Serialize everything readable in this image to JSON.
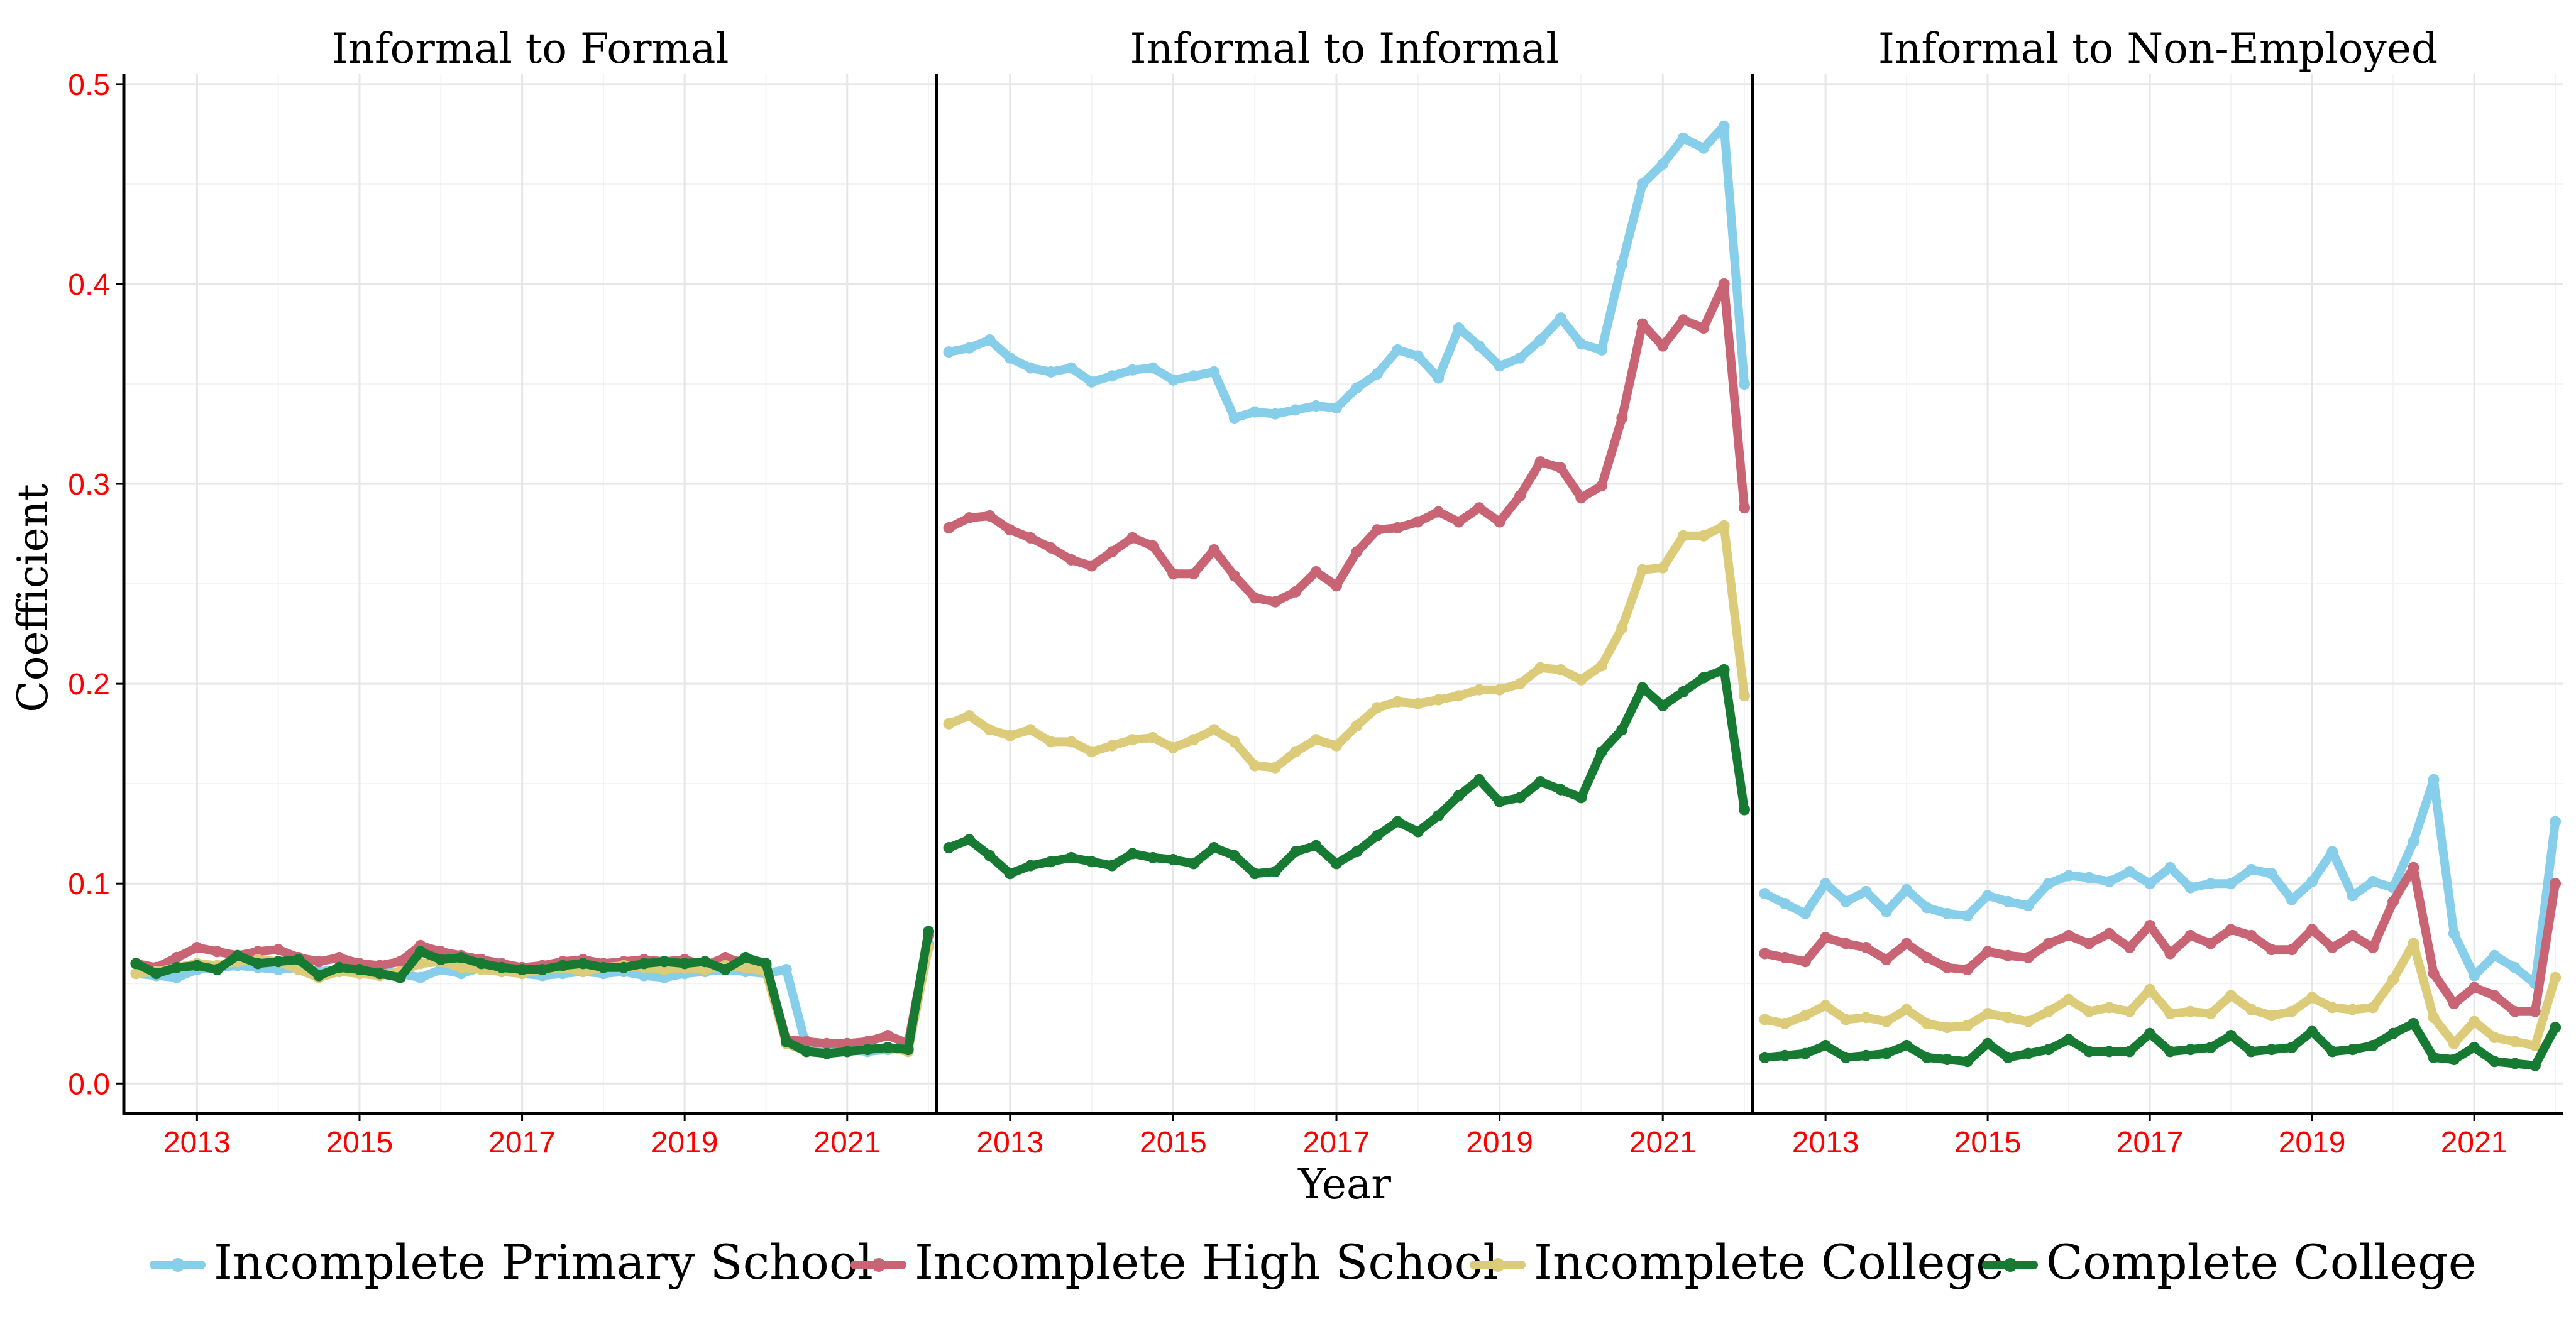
{
  "chart_data": {
    "type": "line",
    "xlabel": "Year",
    "ylabel": "Coefficient",
    "x_tick_labels": [
      "2013",
      "2015",
      "2017",
      "2019",
      "2021"
    ],
    "y_tick_labels": [
      "0.0",
      "0.1",
      "0.2",
      "0.3",
      "0.4",
      "0.5"
    ],
    "xlim": [
      2012.1,
      2022.1
    ],
    "ylim": [
      -0.015,
      0.505
    ],
    "tick_label_color": "#ff0000",
    "grid": true,
    "legend_position": "bottom",
    "series_styles": [
      {
        "name": "Incomplete Primary School",
        "color": "#87ceeb"
      },
      {
        "name": "Incomplete High School",
        "color": "#c86473"
      },
      {
        "name": "Incomplete College",
        "color": "#dccb78"
      },
      {
        "name": "Complete College",
        "color": "#167a32"
      }
    ],
    "x": [
      2012.25,
      2012.5,
      2012.75,
      2013.0,
      2013.25,
      2013.5,
      2013.75,
      2014.0,
      2014.25,
      2014.5,
      2014.75,
      2015.0,
      2015.25,
      2015.5,
      2015.75,
      2016.0,
      2016.25,
      2016.5,
      2016.75,
      2017.0,
      2017.25,
      2017.5,
      2017.75,
      2018.0,
      2018.25,
      2018.5,
      2018.75,
      2019.0,
      2019.25,
      2019.5,
      2019.75,
      2020.0,
      2020.25,
      2020.5,
      2020.75,
      2021.0,
      2021.25,
      2021.5,
      2021.75,
      2022.0
    ],
    "panels": [
      {
        "title": "Informal to Formal",
        "series": [
          {
            "name": "Incomplete Primary School",
            "values": [
              0.055,
              0.054,
              0.053,
              0.057,
              0.058,
              0.059,
              0.058,
              0.057,
              0.058,
              0.056,
              0.057,
              0.055,
              0.056,
              0.055,
              0.053,
              0.057,
              0.055,
              0.058,
              0.056,
              0.055,
              0.054,
              0.055,
              0.056,
              0.055,
              0.056,
              0.054,
              0.053,
              0.055,
              0.056,
              0.057,
              0.056,
              0.055,
              0.057,
              0.018,
              0.016,
              0.017,
              0.016,
              0.017,
              0.018,
              0.07
            ]
          },
          {
            "name": "Incomplete High School",
            "values": [
              0.06,
              0.058,
              0.063,
              0.068,
              0.066,
              0.064,
              0.066,
              0.067,
              0.063,
              0.061,
              0.063,
              0.06,
              0.059,
              0.061,
              0.069,
              0.066,
              0.064,
              0.062,
              0.06,
              0.058,
              0.059,
              0.061,
              0.062,
              0.06,
              0.061,
              0.062,
              0.061,
              0.062,
              0.059,
              0.063,
              0.06,
              0.059,
              0.022,
              0.021,
              0.02,
              0.02,
              0.021,
              0.024,
              0.02,
              0.074
            ]
          },
          {
            "name": "Incomplete College",
            "values": [
              0.055,
              0.056,
              0.058,
              0.06,
              0.059,
              0.061,
              0.062,
              0.061,
              0.057,
              0.053,
              0.056,
              0.055,
              0.054,
              0.056,
              0.06,
              0.061,
              0.058,
              0.057,
              0.056,
              0.055,
              0.057,
              0.058,
              0.056,
              0.058,
              0.059,
              0.058,
              0.057,
              0.058,
              0.057,
              0.059,
              0.058,
              0.056,
              0.02,
              0.016,
              0.015,
              0.016,
              0.017,
              0.018,
              0.016,
              0.068
            ]
          },
          {
            "name": "Complete College",
            "values": [
              0.06,
              0.055,
              0.058,
              0.059,
              0.057,
              0.064,
              0.06,
              0.061,
              0.062,
              0.054,
              0.058,
              0.057,
              0.055,
              0.053,
              0.066,
              0.062,
              0.063,
              0.06,
              0.058,
              0.057,
              0.057,
              0.059,
              0.06,
              0.058,
              0.058,
              0.06,
              0.061,
              0.06,
              0.061,
              0.057,
              0.063,
              0.06,
              0.021,
              0.016,
              0.015,
              0.016,
              0.017,
              0.018,
              0.017,
              0.076
            ]
          }
        ]
      },
      {
        "title": "Informal to Informal",
        "series": [
          {
            "name": "Incomplete Primary School",
            "values": [
              0.366,
              0.368,
              0.372,
              0.363,
              0.358,
              0.356,
              0.358,
              0.351,
              0.354,
              0.357,
              0.358,
              0.352,
              0.354,
              0.356,
              0.333,
              0.336,
              0.335,
              0.337,
              0.339,
              0.338,
              0.348,
              0.355,
              0.367,
              0.364,
              0.353,
              0.378,
              0.369,
              0.359,
              0.363,
              0.372,
              0.383,
              0.37,
              0.367,
              0.41,
              0.45,
              0.46,
              0.473,
              0.468,
              0.479,
              0.35
            ]
          },
          {
            "name": "Incomplete High School",
            "values": [
              0.278,
              0.283,
              0.284,
              0.277,
              0.273,
              0.268,
              0.262,
              0.259,
              0.266,
              0.273,
              0.269,
              0.255,
              0.255,
              0.267,
              0.254,
              0.243,
              0.241,
              0.246,
              0.256,
              0.249,
              0.266,
              0.277,
              0.278,
              0.281,
              0.286,
              0.281,
              0.288,
              0.281,
              0.294,
              0.311,
              0.308,
              0.293,
              0.299,
              0.333,
              0.38,
              0.369,
              0.382,
              0.378,
              0.4,
              0.288
            ]
          },
          {
            "name": "Incomplete College",
            "values": [
              0.18,
              0.184,
              0.177,
              0.174,
              0.177,
              0.171,
              0.171,
              0.166,
              0.169,
              0.172,
              0.173,
              0.168,
              0.172,
              0.177,
              0.171,
              0.159,
              0.158,
              0.166,
              0.172,
              0.169,
              0.179,
              0.188,
              0.191,
              0.19,
              0.192,
              0.194,
              0.197,
              0.197,
              0.2,
              0.208,
              0.207,
              0.202,
              0.209,
              0.228,
              0.257,
              0.258,
              0.274,
              0.274,
              0.279,
              0.194
            ]
          },
          {
            "name": "Complete College",
            "values": [
              0.118,
              0.122,
              0.114,
              0.105,
              0.109,
              0.111,
              0.113,
              0.111,
              0.109,
              0.115,
              0.113,
              0.112,
              0.11,
              0.118,
              0.114,
              0.105,
              0.106,
              0.116,
              0.119,
              0.11,
              0.116,
              0.124,
              0.131,
              0.126,
              0.134,
              0.144,
              0.152,
              0.141,
              0.143,
              0.151,
              0.147,
              0.143,
              0.166,
              0.177,
              0.198,
              0.189,
              0.196,
              0.203,
              0.207,
              0.137
            ]
          }
        ]
      },
      {
        "title": "Informal to Non-Employed",
        "series": [
          {
            "name": "Incomplete Primary School",
            "values": [
              0.095,
              0.09,
              0.085,
              0.1,
              0.091,
              0.096,
              0.086,
              0.097,
              0.088,
              0.085,
              0.084,
              0.094,
              0.091,
              0.089,
              0.1,
              0.104,
              0.103,
              0.101,
              0.106,
              0.1,
              0.108,
              0.098,
              0.1,
              0.1,
              0.107,
              0.105,
              0.092,
              0.101,
              0.116,
              0.094,
              0.101,
              0.098,
              0.121,
              0.152,
              0.075,
              0.054,
              0.064,
              0.058,
              0.05,
              0.131
            ]
          },
          {
            "name": "Incomplete High School",
            "values": [
              0.065,
              0.063,
              0.061,
              0.073,
              0.07,
              0.068,
              0.062,
              0.07,
              0.063,
              0.058,
              0.057,
              0.066,
              0.064,
              0.063,
              0.07,
              0.074,
              0.07,
              0.075,
              0.068,
              0.079,
              0.065,
              0.074,
              0.07,
              0.077,
              0.074,
              0.067,
              0.067,
              0.077,
              0.068,
              0.074,
              0.068,
              0.091,
              0.108,
              0.055,
              0.04,
              0.048,
              0.044,
              0.036,
              0.036,
              0.1
            ]
          },
          {
            "name": "Incomplete College",
            "values": [
              0.032,
              0.03,
              0.034,
              0.039,
              0.032,
              0.033,
              0.031,
              0.037,
              0.03,
              0.028,
              0.029,
              0.035,
              0.033,
              0.031,
              0.036,
              0.042,
              0.036,
              0.038,
              0.036,
              0.047,
              0.035,
              0.036,
              0.035,
              0.044,
              0.037,
              0.034,
              0.036,
              0.043,
              0.038,
              0.037,
              0.038,
              0.052,
              0.07,
              0.033,
              0.02,
              0.031,
              0.023,
              0.021,
              0.019,
              0.053
            ]
          },
          {
            "name": "Complete College",
            "values": [
              0.013,
              0.014,
              0.015,
              0.019,
              0.013,
              0.014,
              0.015,
              0.019,
              0.013,
              0.012,
              0.011,
              0.02,
              0.013,
              0.015,
              0.017,
              0.022,
              0.016,
              0.016,
              0.016,
              0.025,
              0.016,
              0.017,
              0.018,
              0.024,
              0.016,
              0.017,
              0.018,
              0.026,
              0.016,
              0.017,
              0.019,
              0.025,
              0.03,
              0.013,
              0.012,
              0.018,
              0.011,
              0.01,
              0.009,
              0.028
            ]
          }
        ]
      }
    ]
  }
}
